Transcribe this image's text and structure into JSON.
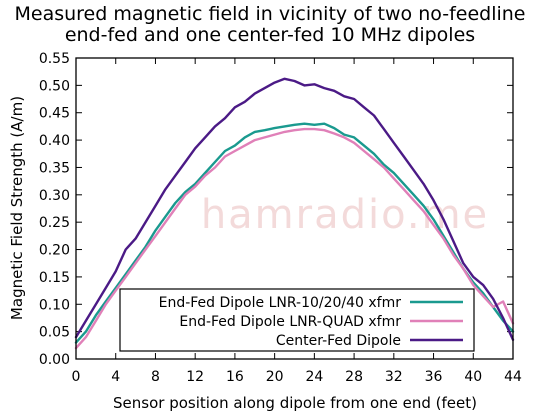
{
  "chart_data": {
    "type": "line",
    "title_lines": [
      "Measured magnetic field in vicinity of two no-feedline",
      "end-fed and one center-fed 10 MHz dipoles"
    ],
    "xlabel": "Sensor position along dipole from one end (feet)",
    "ylabel": "Magnetic Field Strength (A/m)",
    "xlim": [
      0,
      44
    ],
    "ylim": [
      0,
      0.55
    ],
    "xticks": [
      "0",
      "4",
      "8",
      "12",
      "16",
      "20",
      "24",
      "28",
      "32",
      "36",
      "40",
      "44"
    ],
    "yticks": [
      "0.00",
      "0.05",
      "0.10",
      "0.15",
      "0.20",
      "0.25",
      "0.30",
      "0.35",
      "0.40",
      "0.45",
      "0.50",
      "0.55"
    ],
    "grid": false,
    "legend_position": "bottom-left",
    "watermark": "hamradio.me",
    "series": [
      {
        "name": "End-Fed Dipole LNR-10/20/40 xfmr",
        "color": "#1a9a8f",
        "x": [
          0,
          1,
          2,
          3,
          4,
          5,
          6,
          7,
          8,
          9,
          10,
          11,
          12,
          13,
          14,
          15,
          16,
          17,
          18,
          19,
          20,
          21,
          22,
          23,
          24,
          25,
          26,
          27,
          28,
          29,
          30,
          31,
          32,
          33,
          34,
          35,
          36,
          37,
          38,
          39,
          40,
          41,
          42,
          43,
          44
        ],
        "y": [
          0.03,
          0.05,
          0.08,
          0.105,
          0.13,
          0.155,
          0.18,
          0.205,
          0.235,
          0.26,
          0.285,
          0.305,
          0.32,
          0.34,
          0.36,
          0.38,
          0.39,
          0.405,
          0.415,
          0.418,
          0.422,
          0.425,
          0.428,
          0.43,
          0.428,
          0.43,
          0.422,
          0.41,
          0.405,
          0.39,
          0.375,
          0.355,
          0.34,
          0.32,
          0.3,
          0.28,
          0.255,
          0.225,
          0.195,
          0.165,
          0.14,
          0.12,
          0.095,
          0.07,
          0.05
        ]
      },
      {
        "name": "End-Fed Dipole LNR-QUAD xfmr",
        "color": "#e080b8",
        "x": [
          0,
          1,
          2,
          3,
          4,
          5,
          6,
          7,
          8,
          9,
          10,
          11,
          12,
          13,
          14,
          15,
          16,
          17,
          18,
          19,
          20,
          21,
          22,
          23,
          24,
          25,
          26,
          27,
          28,
          29,
          30,
          31,
          32,
          33,
          34,
          35,
          36,
          37,
          38,
          39,
          40,
          41,
          42,
          43,
          44
        ],
        "y": [
          0.02,
          0.04,
          0.07,
          0.1,
          0.125,
          0.15,
          0.175,
          0.2,
          0.225,
          0.25,
          0.275,
          0.3,
          0.315,
          0.335,
          0.35,
          0.37,
          0.38,
          0.39,
          0.4,
          0.405,
          0.41,
          0.415,
          0.418,
          0.42,
          0.42,
          0.418,
          0.412,
          0.405,
          0.395,
          0.38,
          0.365,
          0.35,
          0.33,
          0.31,
          0.29,
          0.27,
          0.245,
          0.22,
          0.19,
          0.165,
          0.135,
          0.115,
          0.095,
          0.105,
          0.065
        ]
      },
      {
        "name": "Center-Fed Dipole",
        "color": "#4b1a86",
        "x": [
          0,
          1,
          2,
          3,
          4,
          5,
          6,
          7,
          8,
          9,
          10,
          11,
          12,
          13,
          14,
          15,
          16,
          17,
          18,
          19,
          20,
          21,
          22,
          23,
          24,
          25,
          26,
          27,
          28,
          29,
          30,
          31,
          32,
          33,
          34,
          35,
          36,
          37,
          38,
          39,
          40,
          41,
          42,
          43,
          44
        ],
        "y": [
          0.04,
          0.07,
          0.1,
          0.13,
          0.16,
          0.2,
          0.22,
          0.25,
          0.28,
          0.31,
          0.335,
          0.36,
          0.385,
          0.405,
          0.425,
          0.44,
          0.46,
          0.47,
          0.485,
          0.495,
          0.505,
          0.512,
          0.508,
          0.5,
          0.502,
          0.495,
          0.49,
          0.48,
          0.475,
          0.46,
          0.445,
          0.42,
          0.395,
          0.37,
          0.345,
          0.32,
          0.29,
          0.255,
          0.215,
          0.175,
          0.15,
          0.135,
          0.11,
          0.075,
          0.035
        ]
      }
    ]
  }
}
